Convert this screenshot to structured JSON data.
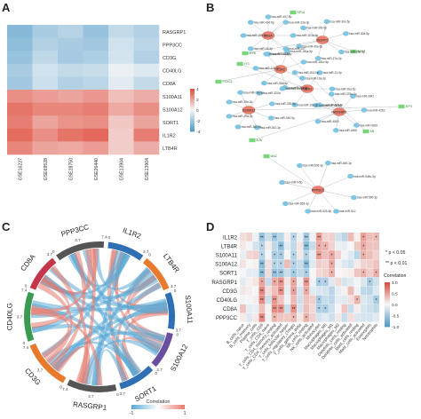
{
  "panels": {
    "a": "A",
    "b": "B",
    "c": "C",
    "d": "D"
  },
  "chart_data": [
    {
      "panel": "A",
      "type": "heatmap",
      "rows": [
        "RASGRP1",
        "PPP3CC",
        "CD3G",
        "CD40LG",
        "CD8A",
        "S100A11",
        "S100A12",
        "SORT1",
        "IL1R2",
        "LTB4R"
      ],
      "columns": [
        "GSE16227",
        "GSE69528",
        "GSE28750",
        "GSE26440",
        "GSE13904",
        "GSE13904"
      ],
      "values": [
        [
          -2.6,
          -1.8,
          -1.5,
          -2.2,
          -1.2,
          -1.6
        ],
        [
          -2.4,
          -1.6,
          -1.8,
          -2.0,
          -0.9,
          -1.4
        ],
        [
          -2.2,
          -1.3,
          -1.9,
          -1.7,
          -0.8,
          -1.6
        ],
        [
          -1.8,
          -0.9,
          -1.2,
          -1.1,
          -0.3,
          -0.6
        ],
        [
          -2.0,
          -1.0,
          -1.6,
          -1.4,
          -0.5,
          -1.2
        ],
        [
          2.4,
          2.1,
          1.9,
          2.2,
          1.3,
          1.7
        ],
        [
          3.0,
          2.6,
          2.6,
          2.8,
          1.8,
          2.4
        ],
        [
          2.8,
          1.9,
          2.3,
          2.4,
          1.1,
          1.9
        ],
        [
          3.2,
          2.4,
          3.0,
          3.3,
          1.0,
          2.8
        ],
        [
          2.6,
          1.9,
          1.8,
          2.1,
          1.0,
          1.7
        ]
      ],
      "color_scale": {
        "min": -4,
        "max": 4,
        "ticks": [
          "4",
          "2",
          "0",
          "-2",
          "-4"
        ]
      },
      "colors": {
        "low": "#4a98c9",
        "mid": "#f7f7f7",
        "high": "#e04a3a"
      }
    },
    {
      "panel": "B",
      "type": "network",
      "hub_color": "#e8816f",
      "mirna_color": "#7ec8e3",
      "tf_color": "#7bd67b",
      "hubs": [
        "CD8A",
        "SORT1",
        "IL1R2",
        "CD3G",
        "S100A12",
        "RASGRP1",
        "PPP3CC"
      ],
      "tfs": [
        "SP1A",
        "EZH2",
        "FOXC1",
        "YY1",
        "ATF1",
        "JUN",
        "MAZ",
        "AR",
        "MYB"
      ],
      "mirnas": [
        "hsa-miR-103a-3p",
        "hsa-miR-107",
        "hsa-miR-15a-5p",
        "hsa-miR-16-5p",
        "hsa-miR-195-5p",
        "hsa-miR-424-5p",
        "hsa-miR-497-5p",
        "hsa-miR-23a-3p",
        "hsa-miR-23b-3p",
        "hsa-miR-27a-3p",
        "hsa-miR-30a-5p",
        "hsa-miR-30b-5p",
        "hsa-miR-30c-5p",
        "hsa-miR-30d-5p",
        "hsa-miR-30e-5p",
        "hsa-miR-34a-5p",
        "hsa-miR-124-3p",
        "hsa-miR-155-5p",
        "hsa-miR-181a-5p",
        "hsa-miR-181b-5p",
        "hsa-miR-19a-3p",
        "hsa-miR-19b-3p",
        "hsa-miR-200c-3p",
        "hsa-miR-204-5p",
        "hsa-miR-21-5p",
        "hsa-miR-26a-5p",
        "hsa-miR-26b-5p",
        "hsa-miR-29a-3p",
        "hsa-miR-29b-3p",
        "hsa-miR-29c-3p",
        "hsa-miR-320a",
        "hsa-miR-335-5p",
        "hsa-miR-340-5p",
        "hsa-miR-342-3p",
        "hsa-miR-361-5p",
        "hsa-miR-374a-5p",
        "hsa-miR-378a-3p",
        "hsa-miR-3941",
        "hsa-miR-4262",
        "hsa-miR-4306",
        "hsa-miR-4465",
        "hsa-miR-4500",
        "hsa-miR-506-3p",
        "hsa-miR-545-3p",
        "hsa-miR-548c-3p",
        "hsa-miR-590-3p",
        "hsa-miR-612",
        "hsa-miR-625-5p",
        "hsa-miR-655-3p",
        "hsa-miR-9-5p"
      ]
    },
    {
      "panel": "C",
      "type": "chord",
      "sectors": [
        {
          "name": "IL1R2",
          "color": "#2f6fb3",
          "ticks": [
            "0",
            "3.7"
          ]
        },
        {
          "name": "LTB4R",
          "color": "#e87a2c",
          "ticks": [
            "0",
            "3.7"
          ]
        },
        {
          "name": "S100A11",
          "color": "#2f6fb3",
          "ticks": [
            "0",
            "3.7"
          ]
        },
        {
          "name": "S100A12",
          "color": "#6a4fa0",
          "ticks": [
            "0",
            "3.7"
          ]
        },
        {
          "name": "SORT1",
          "color": "#2f6fb3",
          "ticks": [
            "0",
            "3.7"
          ]
        },
        {
          "name": "RASGRP1",
          "color": "#555555",
          "ticks": [
            "0",
            "3.7",
            "7.4"
          ]
        },
        {
          "name": "CD3G",
          "color": "#e87a2c",
          "ticks": [
            "0",
            "3.7",
            "7.4"
          ]
        },
        {
          "name": "CD40LG",
          "color": "#3a9a4f",
          "ticks": [
            "0",
            "3.7",
            "7.4"
          ]
        },
        {
          "name": "CD8A",
          "color": "#c4374a",
          "ticks": [
            "0",
            "3.7"
          ]
        },
        {
          "name": "PPP3CC",
          "color": "#555555",
          "ticks": [
            "0",
            "3.7",
            "7.4"
          ]
        }
      ],
      "legend": {
        "title": "Correlation",
        "min": "-1",
        "max": "1"
      },
      "colors": {
        "negative": "#5aa9d6",
        "positive": "#e8796c"
      }
    },
    {
      "panel": "D",
      "type": "heatmap",
      "rows": [
        "IL1R2",
        "LTB4R",
        "S100A11",
        "S100A12",
        "SORT1",
        "RASGRP1",
        "CD3G",
        "CD40LG",
        "CD8A",
        "PPP3CC"
      ],
      "columns": [
        "B_cells_naive",
        "B_cells_memory",
        "Plasma_cells",
        "T_cells_CD8",
        "T_cells_CD4_naive",
        "T_cells_CD4_memory_resting",
        "T_cells_CD4_memory_activated",
        "T_cells_follicular_helper",
        "T_cells_regulatory_(Tregs)",
        "T_cells_gamma_delta",
        "NK_cells_resting",
        "NK_cells_activated",
        "Monocytes",
        "Macrophages_M0",
        "Macrophages_M1",
        "Macrophages_M2",
        "Dendritic_cells_resting",
        "Dendritic_cells_activated",
        "Mast_cells_resting",
        "Mast_cells_activated",
        "Eosinophils",
        "Neutrophils"
      ],
      "legend": {
        "title": "Correlation",
        "ticks": [
          "1.0",
          "0.5",
          "0.0",
          "-0.5",
          "-1.0"
        ],
        "sig1": "* p < 0.05",
        "sig2": "** p < 0.01"
      },
      "colors": {
        "low": "#4a98c9",
        "mid": "#f7f7f7",
        "high": "#d9473a"
      }
    }
  ]
}
